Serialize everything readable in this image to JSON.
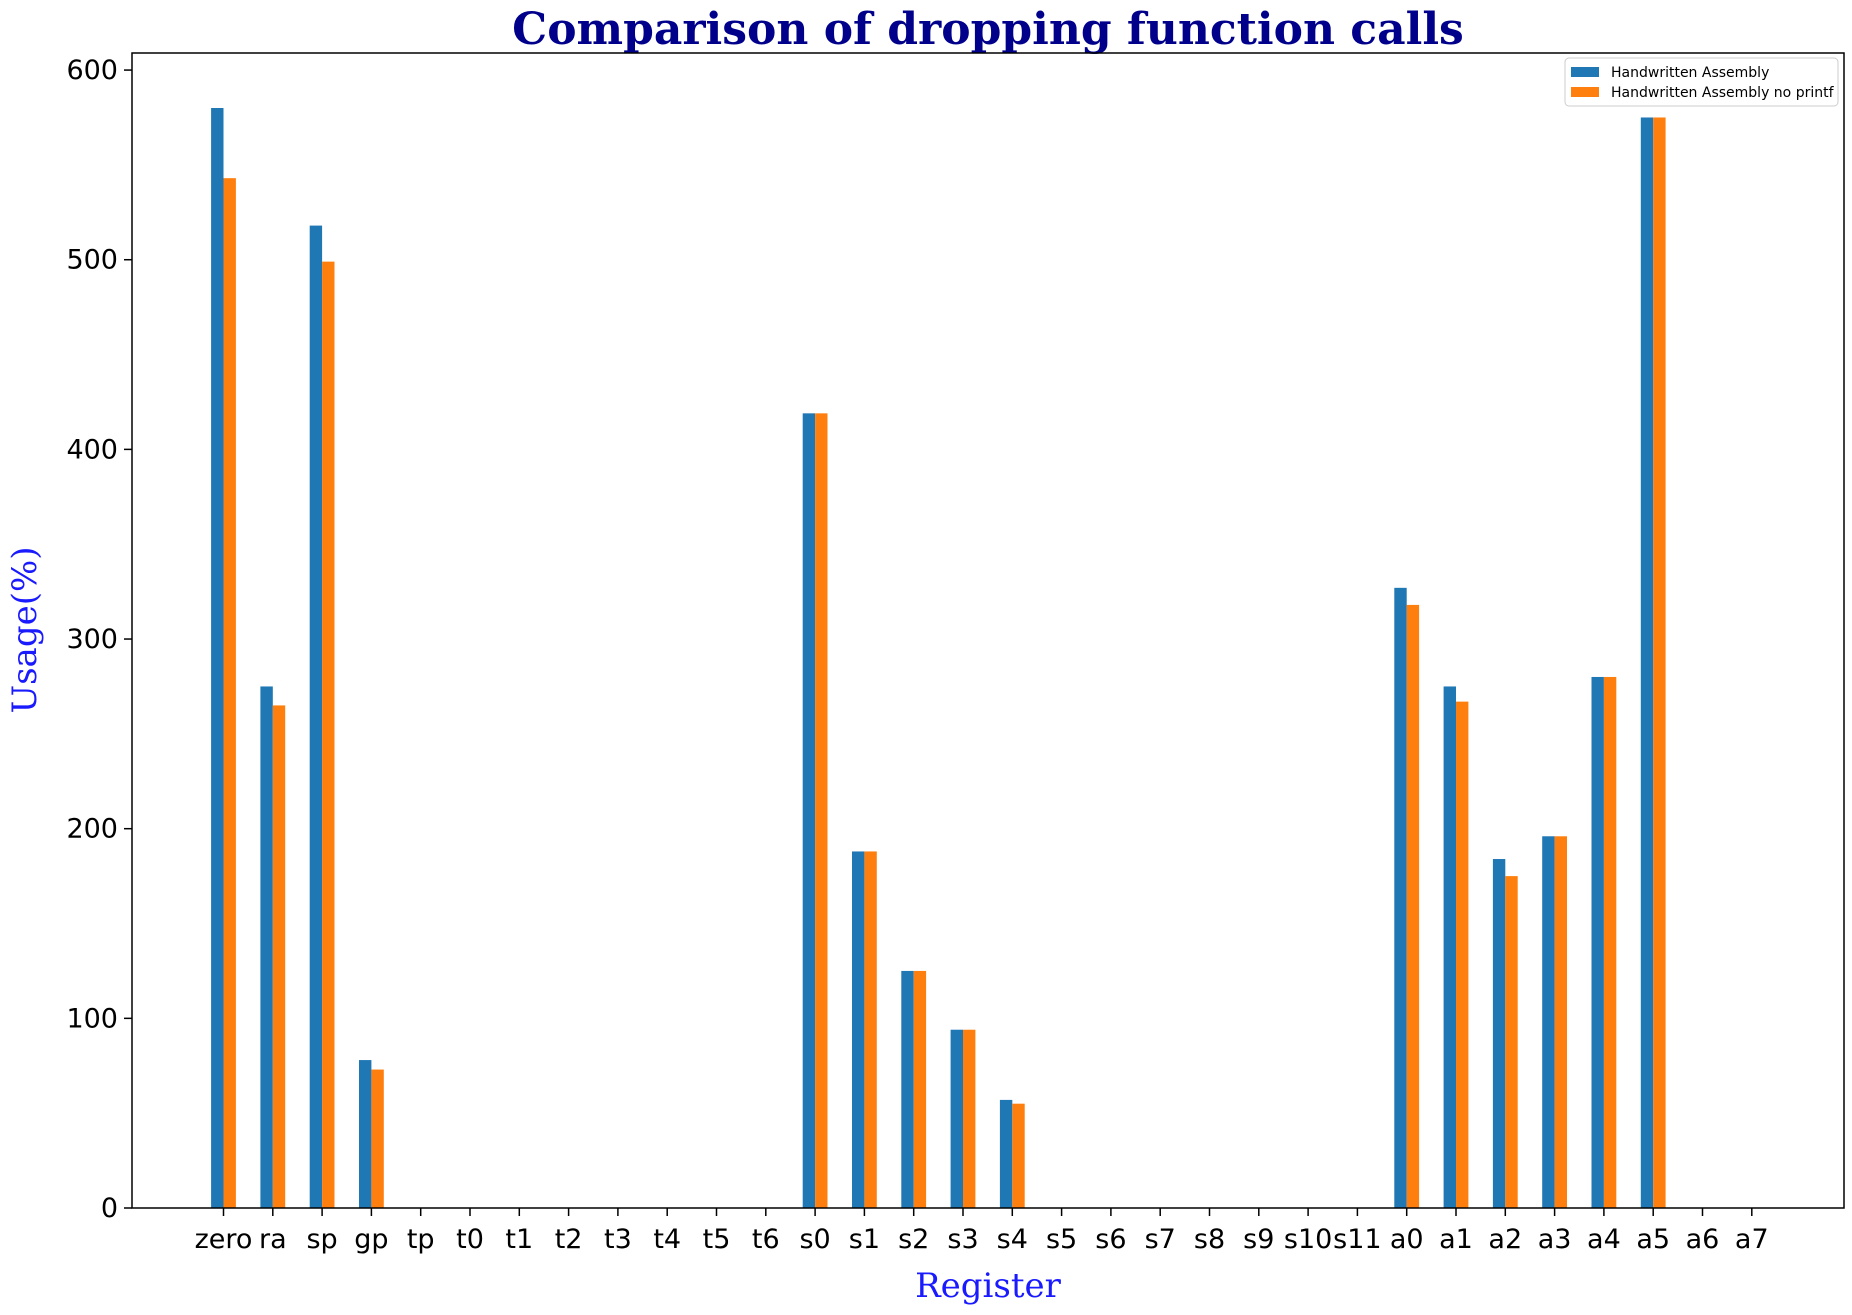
{
  "chart_data": {
    "type": "bar",
    "title": "Comparison of dropping function calls",
    "xlabel": "Register",
    "ylabel": "Usage(%)",
    "ylim": [
      0,
      609
    ],
    "yticks": [
      0,
      100,
      200,
      300,
      400,
      500,
      600
    ],
    "categories": [
      "zero",
      "ra",
      "sp",
      "gp",
      "tp",
      "t0",
      "t1",
      "t2",
      "t3",
      "t4",
      "t5",
      "t6",
      "s0",
      "s1",
      "s2",
      "s3",
      "s4",
      "s5",
      "s6",
      "s7",
      "s8",
      "s9",
      "s10",
      "s11",
      "a0",
      "a1",
      "a2",
      "a3",
      "a4",
      "a5",
      "a6",
      "a7"
    ],
    "series": [
      {
        "name": "Handwritten Assembly",
        "color": "#1f77b4",
        "values": [
          580,
          275,
          518,
          78,
          0,
          0,
          0,
          0,
          0,
          0,
          0,
          0,
          419,
          188,
          125,
          94,
          57,
          0,
          0,
          0,
          0,
          0,
          0,
          0,
          327,
          275,
          184,
          196,
          280,
          575,
          0,
          0
        ]
      },
      {
        "name": "Handwritten Assembly no printf",
        "color": "#ff7f0e",
        "values": [
          543,
          265,
          499,
          73,
          0,
          0,
          0,
          0,
          0,
          0,
          0,
          0,
          419,
          188,
          125,
          94,
          55,
          0,
          0,
          0,
          0,
          0,
          0,
          0,
          318,
          267,
          175,
          196,
          280,
          575,
          0,
          0
        ]
      }
    ],
    "legend_position": "top-right",
    "grid": false
  }
}
